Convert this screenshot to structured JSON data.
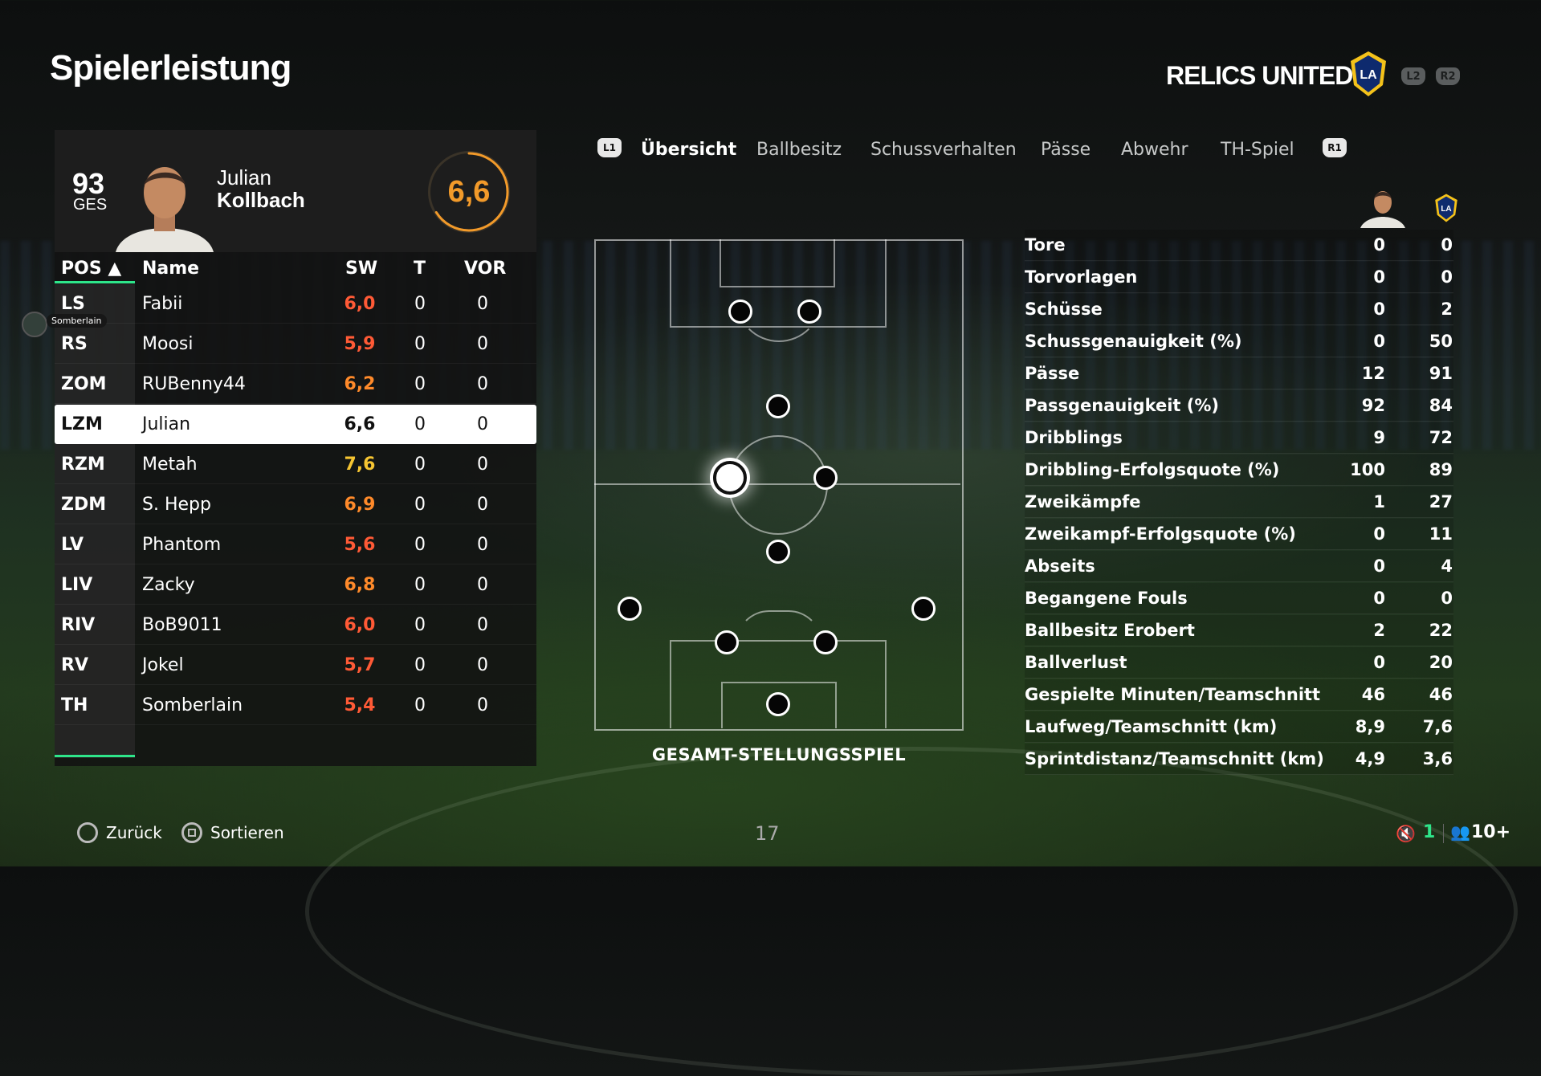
{
  "header": {
    "title": "Spielerleistung",
    "team_name": "RELICS UNITED",
    "btn_l2": "L2",
    "btn_r2": "R2"
  },
  "player": {
    "overall": "93",
    "overall_label": "GES",
    "first_name": "Julian",
    "last_name": "Kollbach",
    "rating": "6,6"
  },
  "table": {
    "headers": {
      "pos": "POS ▲",
      "name": "Name",
      "sw": "SW",
      "t": "T",
      "vor": "VOR"
    },
    "rows": [
      {
        "pos": "LS",
        "name": "Fabii",
        "sw": "6,0",
        "t": "0",
        "vor": "0"
      },
      {
        "pos": "RS",
        "name": "Moosi",
        "sw": "5,9",
        "t": "0",
        "vor": "0"
      },
      {
        "pos": "ZOM",
        "name": "RUBenny44",
        "sw": "6,2",
        "t": "0",
        "vor": "0"
      },
      {
        "pos": "LZM",
        "name": "Julian",
        "sw": "6,6",
        "t": "0",
        "vor": "0"
      },
      {
        "pos": "RZM",
        "name": "Metah",
        "sw": "7,6",
        "t": "0",
        "vor": "0"
      },
      {
        "pos": "ZDM",
        "name": "S. Hepp",
        "sw": "6,9",
        "t": "0",
        "vor": "0"
      },
      {
        "pos": "LV",
        "name": "Phantom",
        "sw": "5,6",
        "t": "0",
        "vor": "0"
      },
      {
        "pos": "LIV",
        "name": "Zacky",
        "sw": "6,8",
        "t": "0",
        "vor": "0"
      },
      {
        "pos": "RIV",
        "name": "BoB9011",
        "sw": "6,0",
        "t": "0",
        "vor": "0"
      },
      {
        "pos": "RV",
        "name": "Jokel",
        "sw": "5,7",
        "t": "0",
        "vor": "0"
      },
      {
        "pos": "TH",
        "name": "Somberlain",
        "sw": "5,4",
        "t": "0",
        "vor": "0"
      }
    ]
  },
  "side_tag": "Somberlain",
  "tabs": {
    "btn_l1": "L1",
    "btn_r1": "R1",
    "items": [
      "Übersicht",
      "Ballbesitz",
      "Schussverhalten",
      "Pässe",
      "Abwehr",
      "TH-Spiel"
    ]
  },
  "pitch_caption": "GESAMT-STELLUNGSSPIEL",
  "stats": [
    {
      "label": "Tore",
      "player": "0",
      "team": "0"
    },
    {
      "label": "Torvorlagen",
      "player": "0",
      "team": "0"
    },
    {
      "label": "Schüsse",
      "player": "0",
      "team": "2"
    },
    {
      "label": "Schussgenauigkeit (%)",
      "player": "0",
      "team": "50"
    },
    {
      "label": "Pässe",
      "player": "12",
      "team": "91"
    },
    {
      "label": "Passgenauigkeit (%)",
      "player": "92",
      "team": "84"
    },
    {
      "label": "Dribblings",
      "player": "9",
      "team": "72"
    },
    {
      "label": "Dribbling-Erfolgsquote (%)",
      "player": "100",
      "team": "89"
    },
    {
      "label": "Zweikämpfe",
      "player": "1",
      "team": "27"
    },
    {
      "label": "Zweikampf-Erfolgsquote (%)",
      "player": "0",
      "team": "11"
    },
    {
      "label": "Abseits",
      "player": "0",
      "team": "4"
    },
    {
      "label": "Begangene Fouls",
      "player": "0",
      "team": "0"
    },
    {
      "label": "Ballbesitz Erobert",
      "player": "2",
      "team": "22"
    },
    {
      "label": "Ballverlust",
      "player": "0",
      "team": "20"
    },
    {
      "label": "Gespielte Minuten/Teamschnitt",
      "player": "46",
      "team": "46"
    },
    {
      "label": "Laufweg/Teamschnitt (km)",
      "player": "8,9",
      "team": "7,6"
    },
    {
      "label": "Sprintdistanz/Teamschnitt (km)",
      "player": "4,9",
      "team": "3,6"
    }
  ],
  "footer": {
    "back": "Zurück",
    "sort": "Sortieren",
    "page": "17",
    "mic_count": "1",
    "players": "10+"
  },
  "colors": {
    "accent": "#2ee58a",
    "rating": "#f29a2a"
  }
}
